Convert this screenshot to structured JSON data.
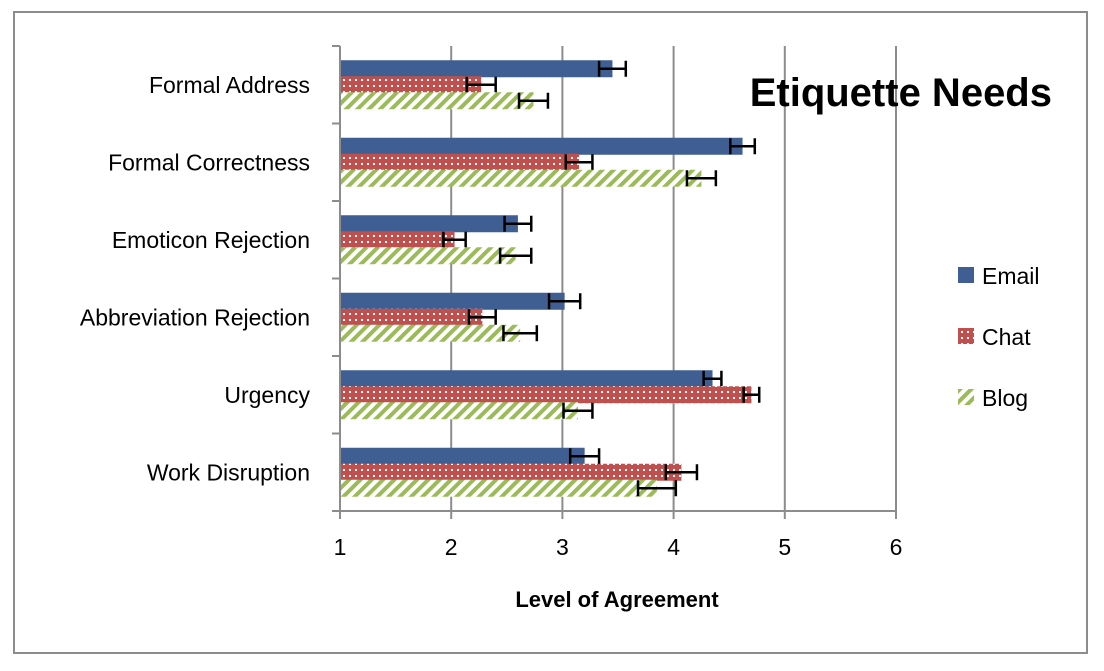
{
  "chart_data": {
    "type": "bar",
    "orientation": "horizontal",
    "title": "Etiquette Needs",
    "xlabel": "Level of Agreement",
    "ylabel": "",
    "xlim": [
      1,
      6
    ],
    "xticks": [
      1,
      2,
      3,
      4,
      5,
      6
    ],
    "grid": "vertical",
    "legend_position": "right",
    "categories": [
      "Formal Address",
      "Formal Correctness",
      "Emoticon Rejection",
      "Abbreviation Rejection",
      "Urgency",
      "Work Disruption"
    ],
    "series": [
      {
        "name": "Email",
        "color": "#3f5f93",
        "pattern": "solid",
        "values": [
          3.45,
          4.62,
          2.6,
          3.02,
          4.35,
          3.2
        ],
        "error": [
          0.12,
          0.11,
          0.12,
          0.14,
          0.08,
          0.13
        ]
      },
      {
        "name": "Chat",
        "color": "#c0504d",
        "pattern": "dots",
        "values": [
          2.27,
          3.15,
          2.03,
          2.28,
          4.7,
          4.07
        ],
        "error": [
          0.13,
          0.12,
          0.1,
          0.12,
          0.07,
          0.14
        ]
      },
      {
        "name": "Blog",
        "color": "#9bbb59",
        "pattern": "diagonal-stripes",
        "values": [
          2.74,
          4.25,
          2.58,
          2.62,
          3.14,
          3.85
        ],
        "error": [
          0.13,
          0.13,
          0.14,
          0.15,
          0.13,
          0.17
        ]
      }
    ]
  }
}
